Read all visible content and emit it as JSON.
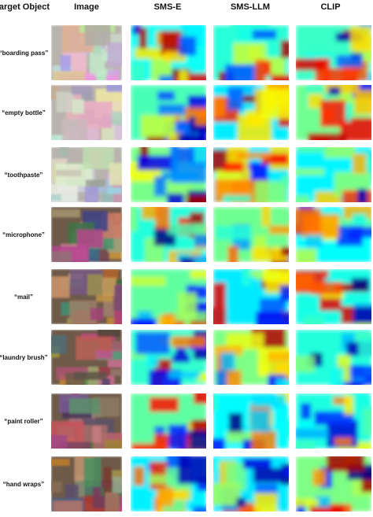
{
  "header": [
    "Target Object",
    "Image",
    "SMS-E",
    "SMS-LLM",
    "CLIP"
  ],
  "rows": [
    {
      "label": "“boarding pass”"
    },
    {
      "label": "“empty bottle”"
    },
    {
      "label": "“toothpaste”"
    },
    {
      "label": "“microphone”"
    },
    {
      "label": "“mail”"
    },
    {
      "label": "“laundry brush”"
    },
    {
      "label": "“paint roller”"
    },
    {
      "label": "“hand wraps”"
    }
  ]
}
